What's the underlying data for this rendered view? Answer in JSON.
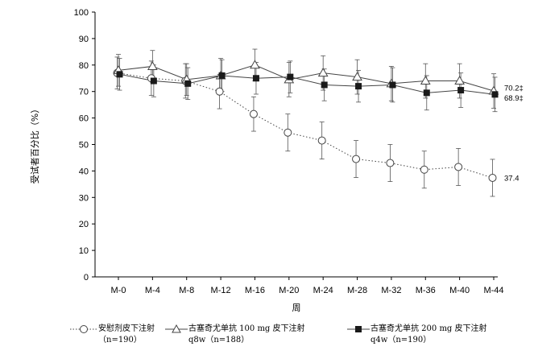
{
  "chart_data": {
    "type": "line",
    "ylabel": "受试者百分比（%）",
    "xlabel": "周",
    "ylim": [
      0,
      100
    ],
    "yticks": [
      0,
      10,
      20,
      30,
      40,
      50,
      60,
      70,
      80,
      90,
      100
    ],
    "categories": [
      "M-0",
      "M-4",
      "M-8",
      "M-12",
      "M-16",
      "M-20",
      "M-24",
      "M-28",
      "M-32",
      "M-36",
      "M-40",
      "M-44"
    ],
    "grid": false,
    "legend_position": "bottom",
    "series": [
      {
        "name": "安慰剂皮下注射（n=190）",
        "name_line1": "安慰剂皮下注射",
        "name_line2": "（n=190）",
        "marker": "circle-open",
        "line": "dotted",
        "values": [
          77,
          75,
          74,
          70,
          61.5,
          54.5,
          51.5,
          44.5,
          43,
          40.5,
          41.5,
          37.4
        ],
        "error": [
          6,
          6.5,
          6.5,
          6.5,
          6.5,
          7,
          7,
          7,
          7,
          7,
          7,
          7
        ],
        "end_label": "37.4"
      },
      {
        "name": "古塞奇尤单抗 100 mg 皮下注射 q8w（n=188）",
        "name_line1": "古塞奇尤单抗 100 mg  皮下注射",
        "name_line2": "q8w（n=188）",
        "marker": "triangle-open",
        "line": "solid",
        "values": [
          78,
          79.5,
          74.5,
          76,
          80,
          74.5,
          77,
          75.5,
          73,
          74,
          74,
          70.2
        ],
        "error": [
          6,
          6,
          6,
          6.5,
          6,
          6.5,
          6.5,
          6.5,
          6.5,
          6.5,
          6.5,
          6.5
        ],
        "end_label": "70.2‡"
      },
      {
        "name": "古塞奇尤单抗 200 mg 皮下注射 q4w（n=190）",
        "name_line1": "古塞奇尤单抗 200 mg  皮下注射",
        "name_line2": "q4w（n=190）",
        "marker": "square-filled",
        "line": "solid",
        "values": [
          76.5,
          74,
          73,
          76,
          75,
          75.5,
          72.5,
          72,
          72.5,
          69.5,
          70.5,
          68.9
        ],
        "error": [
          6,
          6,
          6,
          6,
          6,
          6,
          6,
          6,
          6.5,
          6.5,
          6.5,
          6.5
        ],
        "end_label": "68.9‡"
      }
    ]
  }
}
